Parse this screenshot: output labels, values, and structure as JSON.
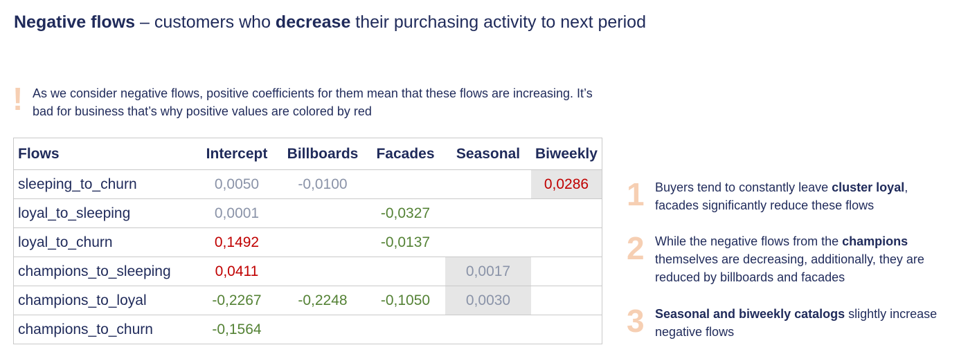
{
  "title": {
    "bold1": "Negative flows",
    "mid": " – customers who ",
    "bold2": "decrease",
    "rest": " their purchasing activity to next period"
  },
  "note": {
    "mark": "!",
    "text": "As we consider negative flows, positive coefficients for them mean that these flows are increasing. It’s bad for business that’s why positive values are colored by red"
  },
  "table": {
    "headers": [
      "Flows",
      "Intercept",
      "Billboards",
      "Facades",
      "Seasonal",
      "Biweekly"
    ],
    "rows": [
      {
        "flow": "sleeping_to_churn",
        "intercept": "0,0050",
        "billboards": "-0,0100",
        "facades": "",
        "seasonal": "",
        "biweekly": "0,0286"
      },
      {
        "flow": "loyal_to_sleeping",
        "intercept": "0,0001",
        "billboards": "",
        "facades": "-0,0327",
        "seasonal": "",
        "biweekly": ""
      },
      {
        "flow": "loyal_to_churn",
        "intercept": "0,1492",
        "billboards": "",
        "facades": "-0,0137",
        "seasonal": "",
        "biweekly": ""
      },
      {
        "flow": "champions_to_sleeping",
        "intercept": "0,0411",
        "billboards": "",
        "facades": "",
        "seasonal": "0,0017",
        "biweekly": ""
      },
      {
        "flow": "champions_to_loyal",
        "intercept": "-0,2267",
        "billboards": "-0,2248",
        "facades": "-0,1050",
        "seasonal": "0,0030",
        "biweekly": ""
      },
      {
        "flow": "champions_to_churn",
        "intercept": "-0,1564",
        "billboards": "",
        "facades": "",
        "seasonal": "",
        "biweekly": ""
      }
    ]
  },
  "colors": {
    "positive_significant": "#c00000",
    "negative": "#548235",
    "insignificant": "#8a93a8",
    "highlight": "#e6e6e6",
    "accent_number": "#f6cfb3",
    "text": "#1f2a5a"
  },
  "insights": [
    {
      "number": "1",
      "pre": "Buyers tend to constantly leave ",
      "bold": "cluster loyal",
      "post": ", facades significantly reduce these flows"
    },
    {
      "number": "2",
      "pre": "While the negative flows from the ",
      "bold": "champions",
      "post": " themselves are decreasing, additionally, they are reduced by billboards and facades"
    },
    {
      "number": "3",
      "pre": "",
      "bold": "Seasonal and biweekly catalogs",
      "post": " slightly increase negative flows"
    }
  ]
}
